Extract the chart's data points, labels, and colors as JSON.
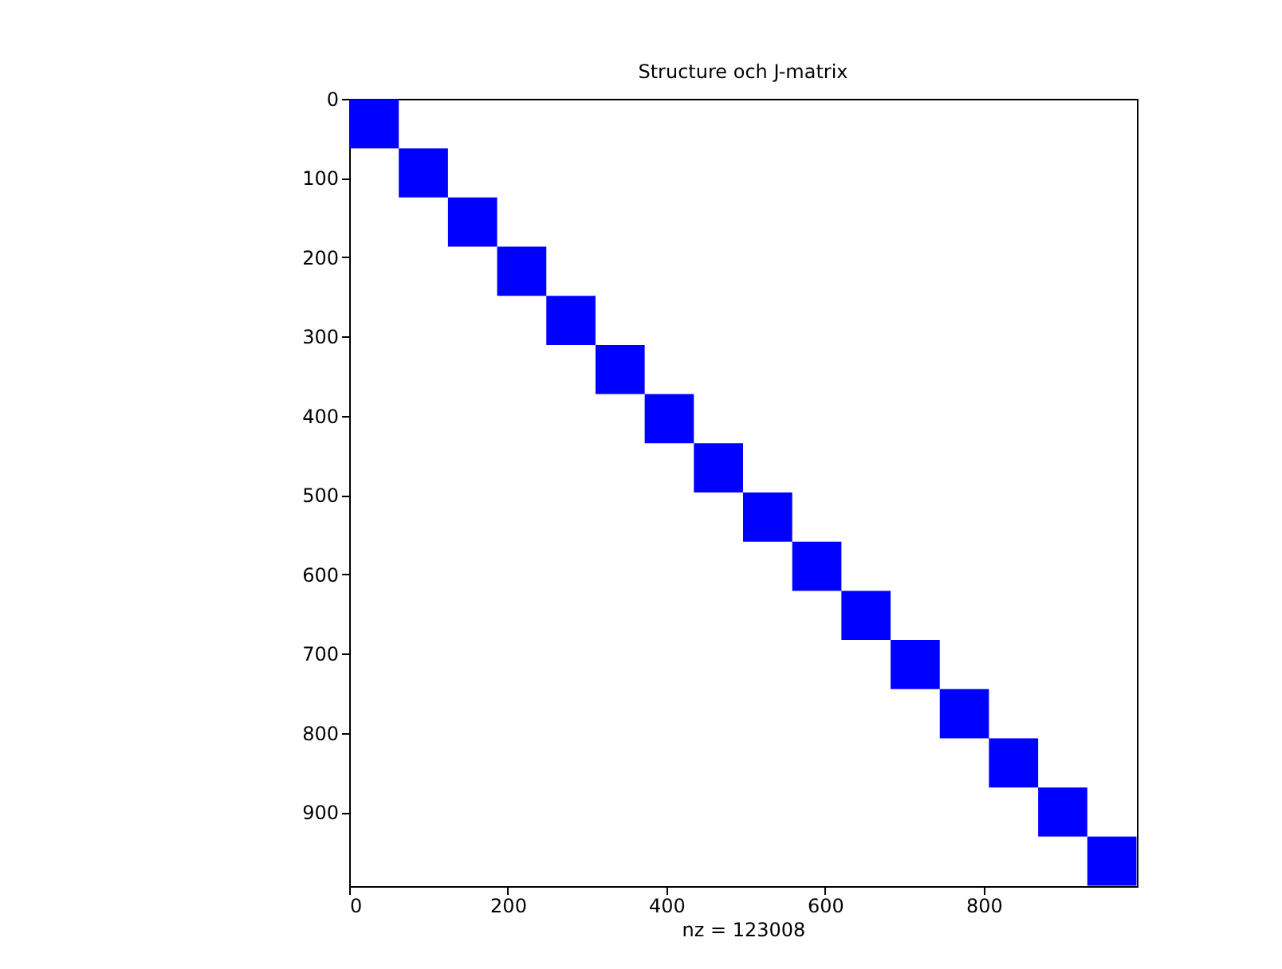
{
  "chart_data": {
    "type": "bubble",
    "title": "Structure och J-matrix",
    "xlabel": "nz = 123008",
    "x": [
      31.5,
      93.5,
      155.5,
      217.5,
      279.5,
      341.5,
      403.5,
      465.5,
      527.5,
      589.5,
      651.5,
      713.5,
      775.5,
      837.5,
      899.5,
      961.5
    ],
    "series": [
      {
        "color": "#0000ff",
        "values": [
          31.5,
          93.5,
          155.5,
          217.5,
          279.5,
          341.5,
          403.5,
          465.5,
          527.5,
          589.5,
          651.5,
          713.5,
          775.5,
          837.5,
          899.5,
          961.5
        ],
        "sizes": [
          1,
          1,
          1,
          1,
          1,
          1,
          1,
          1,
          1,
          1,
          1,
          1,
          1,
          1,
          1,
          1
        ]
      }
    ],
    "marker": "square",
    "xlim": [
      0,
      993
    ],
    "ylim": [
      993,
      0
    ],
    "xticks": [
      0,
      200,
      400,
      600,
      800
    ],
    "yticks": [
      0,
      100,
      200,
      300,
      400,
      500,
      600,
      700,
      800,
      900
    ],
    "grid": false
  }
}
